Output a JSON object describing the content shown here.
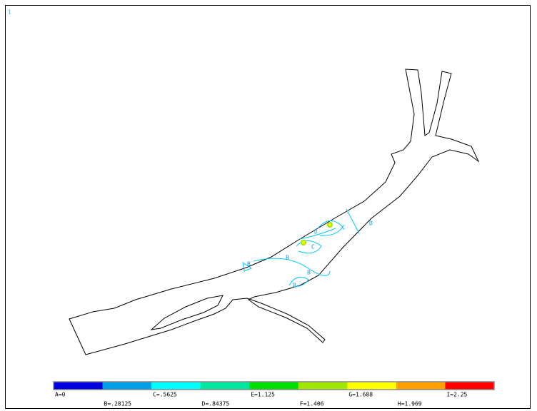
{
  "window": {
    "number": "1"
  },
  "contour_labels": [
    "B",
    "B",
    "B",
    "C",
    "C",
    "D",
    "D",
    "B"
  ],
  "legend": {
    "items": [
      {
        "label": "A=0",
        "color": "#0000e0"
      },
      {
        "label": "B=.28125",
        "color": "#00a0e8"
      },
      {
        "label": "C=.5625",
        "color": "#00ffff"
      },
      {
        "label": "D=.84375",
        "color": "#00e8a0"
      },
      {
        "label": "E=1.125",
        "color": "#00e000"
      },
      {
        "label": "F=1.406",
        "color": "#a0e800"
      },
      {
        "label": "G=1.688",
        "color": "#ffff00"
      },
      {
        "label": "H=1.969",
        "color": "#ffa000"
      },
      {
        "label": "I=2.25",
        "color": "#ff0000"
      }
    ]
  }
}
